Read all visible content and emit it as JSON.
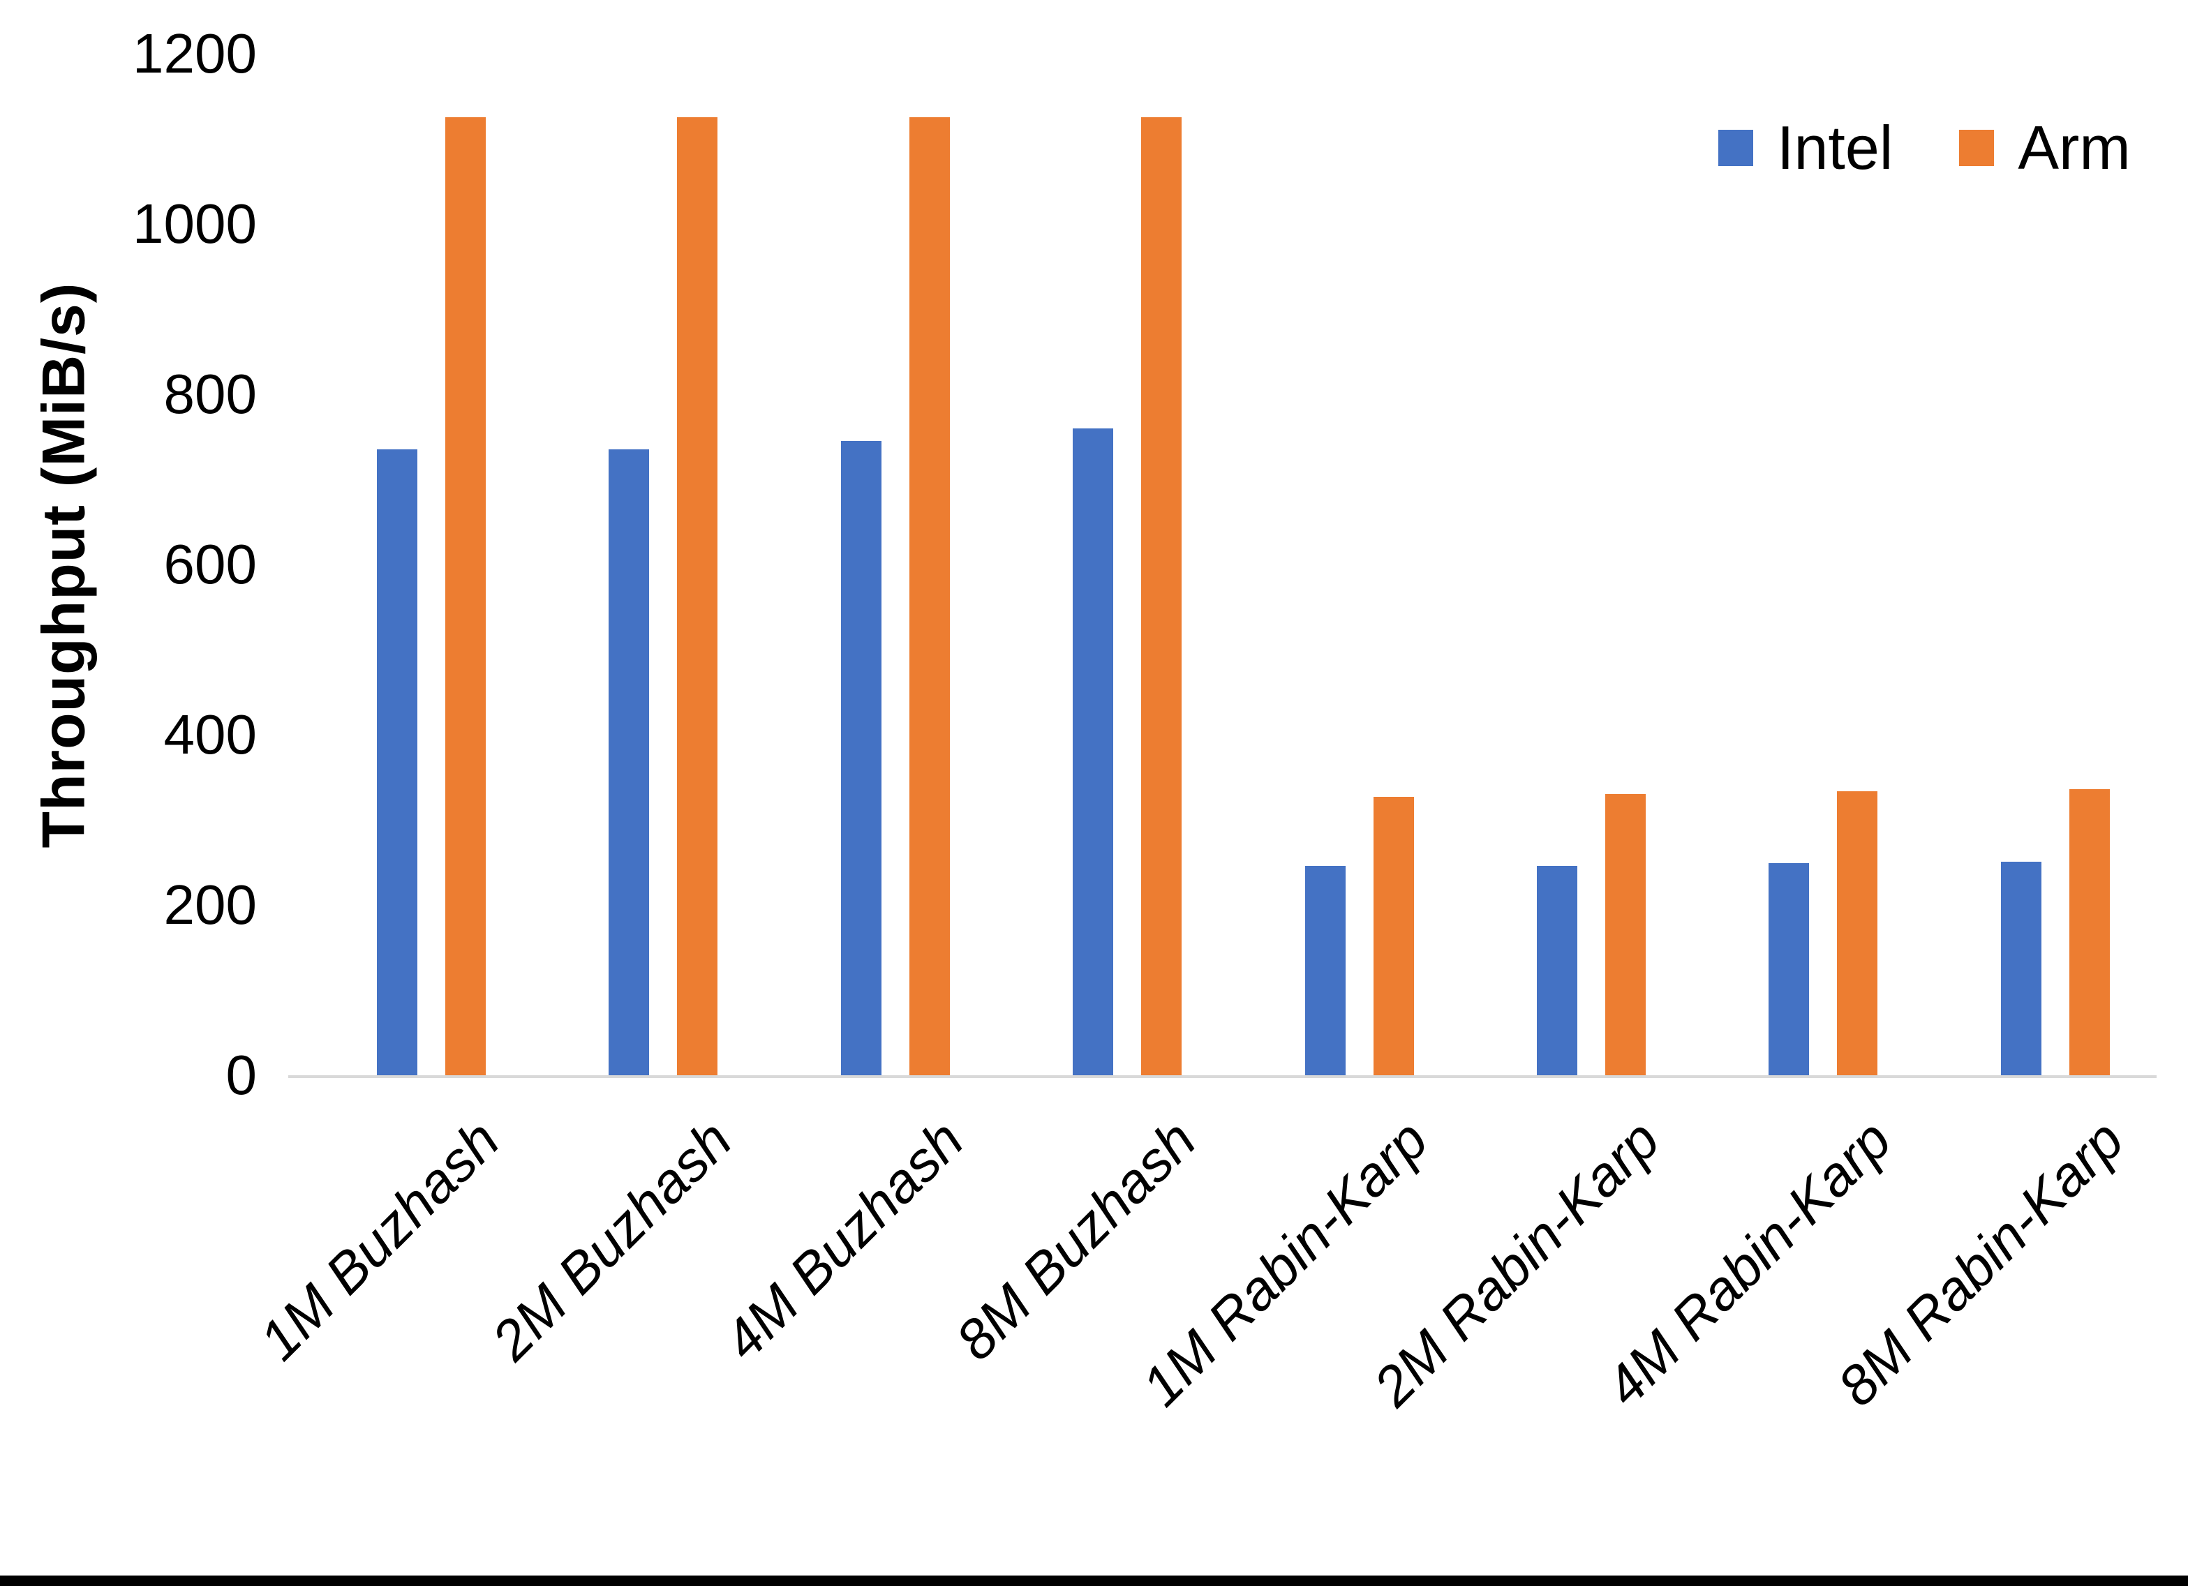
{
  "chart_data": {
    "type": "bar",
    "title": "",
    "xlabel": "",
    "ylabel": "Throughput (MiB/s)",
    "ylim": [
      0,
      1200
    ],
    "yticks": [
      0,
      200,
      400,
      600,
      800,
      1000,
      1200
    ],
    "grid": false,
    "legend_position": "top-right",
    "categories": [
      "1M Buzhash",
      "2M Buzhash",
      "4M Buzhash",
      "8M Buzhash",
      "1M Rabin-Karp",
      "2M Rabin-Karp",
      "4M Rabin-Karp",
      "8M Rabin-Karp"
    ],
    "series": [
      {
        "name": "Intel",
        "color": "#4472C4",
        "values": [
          735,
          735,
          745,
          760,
          246,
          246,
          249,
          251
        ]
      },
      {
        "name": "Arm",
        "color": "#ED7D31",
        "values": [
          1125,
          1125,
          1125,
          1125,
          327,
          330,
          334,
          336
        ]
      }
    ]
  },
  "legend": {
    "items": [
      {
        "label": "Intel",
        "color": "#4472C4"
      },
      {
        "label": "Arm",
        "color": "#ED7D31"
      }
    ]
  },
  "colors": {
    "axis_line": "#d9d9d9",
    "text": "#000000",
    "bottom_border": "#000000"
  }
}
